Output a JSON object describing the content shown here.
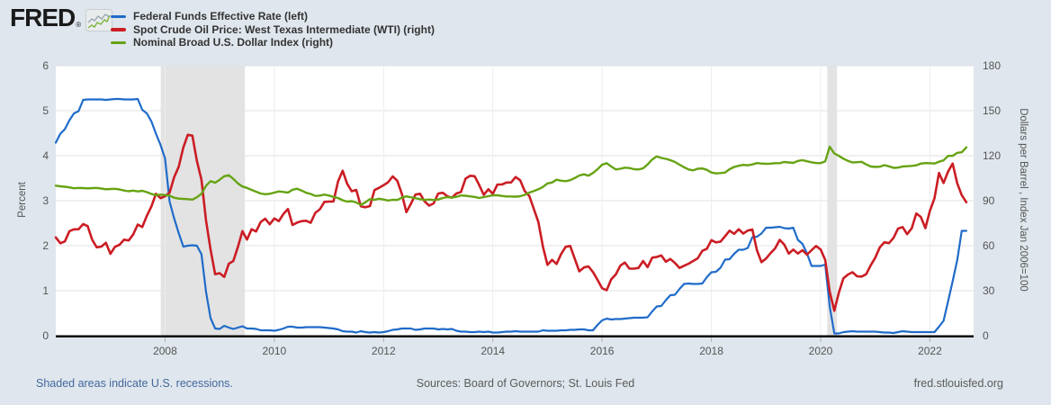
{
  "logo": {
    "text": "FRED",
    "registered": "®"
  },
  "legend": {
    "items": [
      {
        "label": "Federal Funds Effective Rate (left)"
      },
      {
        "label": "Spot Crude Oil Price: West Texas Intermediate (WTI) (right)"
      },
      {
        "label": "Nominal Broad U.S. Dollar Index (right)"
      }
    ]
  },
  "axes": {
    "left": {
      "title": "Percent",
      "ticks": [
        0,
        1,
        2,
        3,
        4,
        5,
        6
      ]
    },
    "right": {
      "title": "Dollars per Barrel , Index Jan 2006=100",
      "ticks": [
        0,
        30,
        60,
        90,
        120,
        150,
        180
      ]
    },
    "x": {
      "years": [
        2008,
        2010,
        2012,
        2014,
        2016,
        2018,
        2020,
        2022
      ]
    }
  },
  "footer": {
    "left": "Shaded areas indicate U.S. recessions.",
    "center": "Sources: Board of Governors; St. Louis Fed",
    "right": "fred.stlouisfed.org"
  },
  "chart_data": {
    "type": "line",
    "frequency": "monthly",
    "start": "2006-01",
    "end": "2022-09",
    "x_domain": [
      2006.0,
      2022.8
    ],
    "ylim_left": [
      0,
      6
    ],
    "ylim_right": [
      0,
      180
    ],
    "grid": true,
    "legend_position": "top-left",
    "colors": {
      "background": "#dfe6ed",
      "plot_background": "#ffffff",
      "recession": "#e3e3e3",
      "grid_h": "#e2e2e2",
      "grid_v": "#ededed",
      "axis_line": "#000000",
      "tick": "#b0b0b0",
      "link": "#44689d"
    },
    "recessions": [
      {
        "start": 2007.92,
        "end": 2009.46
      },
      {
        "start": 2020.12,
        "end": 2020.3
      }
    ],
    "series": [
      {
        "name": "Federal Funds Effective Rate",
        "axis": "left",
        "unit": "Percent",
        "color": "#1f6bc9",
        "width": 2.2,
        "values": [
          4.29,
          4.49,
          4.59,
          4.79,
          4.94,
          4.99,
          5.24,
          5.25,
          5.25,
          5.25,
          5.25,
          5.24,
          5.25,
          5.26,
          5.26,
          5.25,
          5.25,
          5.25,
          5.26,
          5.02,
          4.94,
          4.76,
          4.49,
          4.24,
          3.94,
          2.98,
          2.61,
          2.28,
          1.98,
          2.0,
          2.01,
          2.0,
          1.81,
          0.97,
          0.39,
          0.16,
          0.15,
          0.22,
          0.18,
          0.15,
          0.18,
          0.21,
          0.16,
          0.16,
          0.15,
          0.12,
          0.12,
          0.12,
          0.11,
          0.13,
          0.16,
          0.2,
          0.2,
          0.18,
          0.18,
          0.19,
          0.19,
          0.19,
          0.19,
          0.18,
          0.17,
          0.16,
          0.14,
          0.1,
          0.09,
          0.09,
          0.07,
          0.1,
          0.08,
          0.07,
          0.08,
          0.07,
          0.08,
          0.1,
          0.13,
          0.14,
          0.16,
          0.16,
          0.16,
          0.13,
          0.14,
          0.16,
          0.16,
          0.16,
          0.14,
          0.15,
          0.14,
          0.15,
          0.11,
          0.09,
          0.09,
          0.08,
          0.08,
          0.09,
          0.08,
          0.09,
          0.07,
          0.07,
          0.08,
          0.09,
          0.09,
          0.1,
          0.09,
          0.09,
          0.09,
          0.09,
          0.09,
          0.12,
          0.11,
          0.11,
          0.11,
          0.12,
          0.12,
          0.13,
          0.13,
          0.14,
          0.14,
          0.12,
          0.12,
          0.24,
          0.34,
          0.38,
          0.36,
          0.37,
          0.37,
          0.38,
          0.39,
          0.4,
          0.4,
          0.4,
          0.41,
          0.54,
          0.65,
          0.66,
          0.79,
          0.9,
          0.91,
          1.04,
          1.15,
          1.16,
          1.15,
          1.15,
          1.16,
          1.3,
          1.41,
          1.42,
          1.51,
          1.69,
          1.7,
          1.82,
          1.91,
          1.91,
          1.95,
          2.19,
          2.2,
          2.27,
          2.4,
          2.4,
          2.41,
          2.42,
          2.39,
          2.38,
          2.4,
          2.13,
          2.04,
          1.83,
          1.55,
          1.55,
          1.55,
          1.58,
          0.65,
          0.05,
          0.05,
          0.08,
          0.09,
          0.1,
          0.09,
          0.09,
          0.09,
          0.09,
          0.09,
          0.08,
          0.07,
          0.07,
          0.06,
          0.08,
          0.1,
          0.09,
          0.08,
          0.08,
          0.08,
          0.08,
          0.08,
          0.08,
          0.2,
          0.33,
          0.77,
          1.21,
          1.68,
          2.33,
          2.33
        ]
      },
      {
        "name": "Spot Crude Oil Price: West Texas Intermediate (WTI)",
        "axis": "right",
        "unit": "Dollars per Barrel",
        "color": "#cb1d24",
        "width": 2.6,
        "values": [
          65.5,
          61.6,
          62.9,
          69.7,
          70.9,
          71.0,
          74.4,
          73.1,
          63.9,
          58.9,
          59.4,
          62.0,
          54.6,
          59.3,
          60.6,
          64.0,
          63.5,
          67.5,
          74.1,
          72.4,
          79.9,
          86.2,
          94.6,
          91.7,
          93.0,
          95.4,
          105.6,
          112.6,
          125.4,
          133.9,
          133.4,
          116.6,
          103.9,
          76.7,
          57.4,
          41.0,
          41.7,
          39.2,
          48.0,
          49.8,
          59.2,
          69.7,
          64.1,
          71.0,
          69.5,
          75.8,
          78.0,
          74.3,
          78.2,
          76.4,
          81.2,
          84.5,
          73.8,
          75.4,
          76.4,
          76.6,
          75.3,
          81.9,
          84.3,
          89.2,
          89.4,
          89.5,
          102.9,
          110.0,
          101.3,
          96.3,
          97.2,
          86.3,
          85.6,
          86.4,
          97.1,
          98.6,
          100.3,
          102.3,
          106.2,
          103.3,
          94.7,
          82.4,
          87.9,
          94.1,
          94.6,
          89.6,
          86.7,
          88.2,
          94.8,
          95.3,
          93.0,
          92.0,
          94.8,
          95.8,
          104.7,
          106.6,
          106.3,
          100.5,
          93.9,
          97.6,
          94.6,
          100.8,
          100.8,
          102.1,
          102.2,
          105.8,
          103.6,
          96.5,
          93.2,
          84.4,
          75.8,
          59.3,
          47.2,
          50.6,
          47.8,
          54.5,
          59.3,
          59.8,
          51.2,
          42.9,
          45.5,
          46.2,
          42.4,
          37.2,
          31.7,
          30.3,
          37.6,
          40.8,
          46.7,
          48.8,
          44.7,
          44.7,
          45.2,
          49.8,
          45.7,
          52.0,
          52.5,
          53.5,
          49.3,
          51.1,
          48.5,
          45.2,
          46.6,
          48.0,
          49.8,
          51.6,
          56.6,
          57.9,
          63.7,
          62.2,
          62.7,
          66.3,
          70.0,
          67.9,
          71.0,
          68.1,
          70.1,
          70.8,
          57.0,
          49.0,
          51.4,
          55.0,
          58.2,
          63.9,
          60.8,
          54.7,
          57.4,
          54.8,
          57.0,
          54.0,
          57.0,
          59.8,
          57.5,
          50.5,
          29.2,
          16.6,
          28.6,
          38.3,
          40.8,
          42.3,
          39.6,
          39.4,
          41.0,
          47.0,
          52.0,
          59.0,
          62.3,
          61.7,
          65.2,
          71.4,
          72.4,
          67.7,
          71.6,
          81.5,
          79.2,
          71.7,
          83.2,
          91.6,
          108.5,
          101.8,
          109.5,
          114.8,
          101.6,
          93.7,
          89.0
        ]
      },
      {
        "name": "Nominal Broad U.S. Dollar Index",
        "axis": "right",
        "unit": "Index Jan 2006=100",
        "color": "#66a313",
        "width": 2.4,
        "values": [
          100.0,
          99.6,
          99.3,
          98.9,
          98.3,
          98.5,
          98.4,
          98.2,
          98.4,
          98.5,
          98.1,
          97.6,
          97.8,
          97.9,
          97.5,
          96.8,
          96.3,
          96.7,
          96.2,
          96.6,
          95.7,
          94.5,
          93.7,
          94.0,
          93.8,
          93.4,
          92.0,
          91.4,
          91.2,
          91.0,
          90.7,
          92.3,
          94.6,
          100.0,
          103.0,
          102.0,
          104.0,
          106.3,
          107.0,
          104.5,
          101.5,
          99.5,
          98.5,
          97.2,
          96.0,
          94.8,
          94.3,
          94.6,
          95.4,
          96.2,
          95.8,
          95.4,
          97.3,
          98.0,
          96.8,
          95.3,
          94.5,
          93.2,
          93.4,
          94.1,
          93.4,
          92.5,
          91.8,
          90.3,
          89.4,
          89.7,
          88.8,
          87.2,
          88.9,
          91.0,
          90.6,
          91.3,
          90.8,
          90.1,
          90.6,
          90.5,
          92.0,
          92.9,
          92.3,
          91.7,
          91.0,
          90.5,
          90.8,
          90.5,
          90.8,
          91.8,
          92.4,
          92.1,
          92.6,
          93.5,
          93.3,
          92.9,
          92.5,
          91.8,
          92.4,
          93.0,
          93.6,
          93.6,
          93.2,
          92.8,
          92.8,
          92.7,
          93.0,
          93.9,
          95.4,
          96.5,
          97.6,
          99.2,
          101.5,
          102.1,
          104.0,
          103.3,
          103.0,
          103.7,
          105.1,
          106.8,
          107.6,
          106.7,
          108.5,
          111.0,
          114.0,
          115.0,
          112.8,
          110.8,
          111.3,
          112.0,
          111.8,
          111.0,
          110.8,
          111.6,
          114.2,
          117.5,
          119.5,
          118.5,
          117.9,
          117.0,
          115.8,
          114.0,
          112.3,
          110.8,
          110.2,
          111.3,
          111.5,
          110.6,
          108.8,
          108.2,
          108.4,
          108.8,
          111.0,
          112.5,
          113.3,
          113.9,
          113.6,
          114.2,
          115.1,
          114.8,
          114.6,
          114.7,
          115.0,
          115.0,
          115.8,
          115.5,
          115.2,
          116.5,
          117.0,
          116.3,
          115.6,
          115.1,
          115.1,
          116.3,
          126.0,
          121.5,
          119.9,
          118.0,
          116.5,
          115.5,
          115.7,
          115.9,
          114.2,
          112.8,
          112.5,
          112.7,
          113.7,
          112.9,
          111.9,
          112.1,
          112.8,
          113.0,
          113.2,
          113.6,
          114.7,
          115.1,
          115.0,
          114.8,
          116.0,
          116.9,
          119.9,
          119.9,
          121.9,
          122.3,
          125.5
        ]
      }
    ]
  }
}
